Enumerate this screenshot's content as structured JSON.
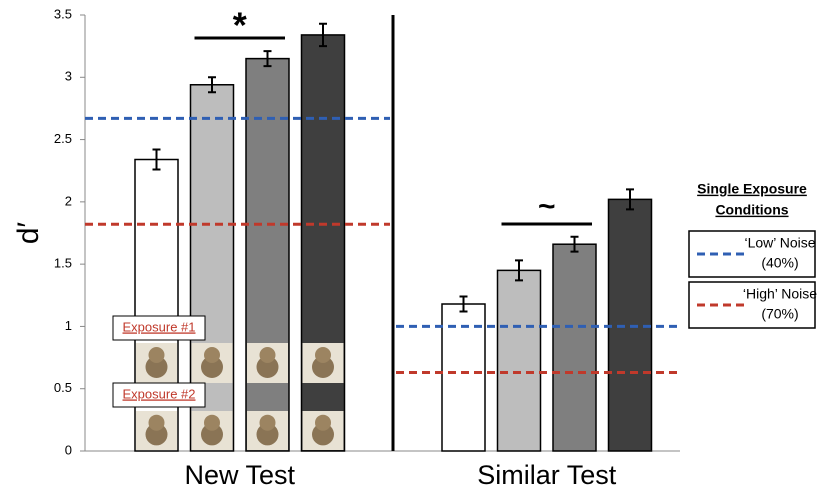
{
  "chart_data": {
    "type": "bar",
    "y_label": "d′",
    "categories": [
      "New Test",
      "Similar Test"
    ],
    "series": [
      {
        "color": "#ffffff",
        "values": [
          2.34,
          1.18
        ],
        "errors": [
          0.08,
          0.06
        ]
      },
      {
        "color": "#bdbdbd",
        "values": [
          2.94,
          1.45
        ],
        "errors": [
          0.06,
          0.08
        ]
      },
      {
        "color": "#7f7f7f",
        "values": [
          3.15,
          1.66
        ],
        "errors": [
          0.06,
          0.06
        ]
      },
      {
        "color": "#3f3f3f",
        "values": [
          3.34,
          2.02
        ],
        "errors": [
          0.09,
          0.08
        ]
      }
    ],
    "reference_lines": [
      {
        "name": [
          "‘Low’ Noise",
          "(40%)"
        ],
        "color": "#2f5fb3",
        "values": [
          2.67,
          1.0
        ]
      },
      {
        "name": [
          "‘High’ Noise",
          "(70%)"
        ],
        "color": "#c0392b",
        "values": [
          1.82,
          0.63
        ]
      }
    ],
    "legend_title": [
      "Single Exposure",
      "Conditions"
    ],
    "annotations": [
      "*",
      "~"
    ],
    "exposure_labels": [
      "Exposure #1",
      "Exposure #2"
    ],
    "ylim": [
      0,
      3.5
    ],
    "yticks": [
      0,
      0.5,
      1,
      1.5,
      2,
      2.5,
      3,
      3.5
    ]
  }
}
